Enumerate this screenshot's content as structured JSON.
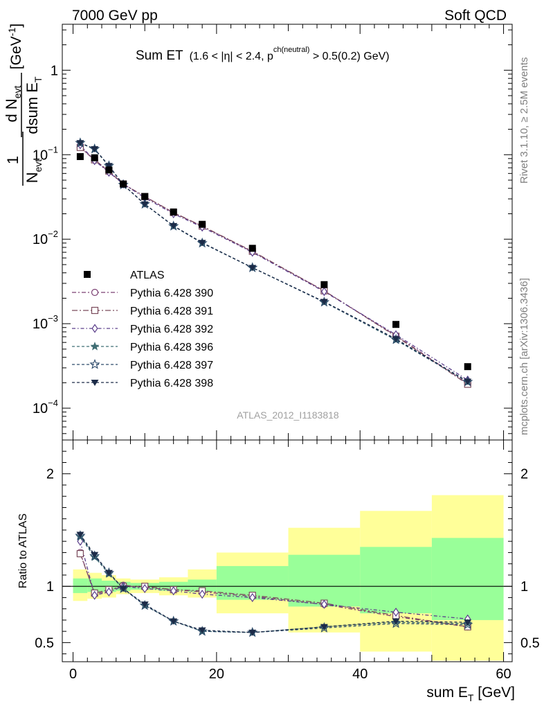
{
  "header": {
    "left": "7000 GeV pp",
    "right": "Soft QCD"
  },
  "side_labels": {
    "rivet": "Rivet 3.1.10, ≥ 2.5M events",
    "mcplots": "mcplots.cern.ch [arXiv:1306.3436]"
  },
  "plot_title": {
    "main": "Sum ET",
    "cond_a": "(1.6 < ",
    "eta": "|η|",
    "cond_b": " < 2.4, p",
    "sup": "ch(neutral)",
    "cond_c": " > 0.5(0.2) GeV)"
  },
  "ylabel": {
    "one": "1",
    "n": "N",
    "n_sub": "evt",
    "d": "d N",
    "d_sub": "evt",
    "dsum": "dsum E",
    "dsum_sub": "T",
    "unit": "[GeV",
    "unit_sup": "-1",
    "unit_end": "]"
  },
  "ratio_ylabel": "Ratio to ATLAS",
  "xlabel": {
    "main": "sum E",
    "sub": "T",
    "unit": " [GeV]"
  },
  "watermark": "ATLAS_2012_I1183818",
  "ytick_labels": [
    {
      "base": "1",
      "exp": ""
    },
    {
      "base": "10",
      "exp": "−1"
    },
    {
      "base": "10",
      "exp": "−2"
    },
    {
      "base": "10",
      "exp": "−3"
    },
    {
      "base": "10",
      "exp": "−4"
    }
  ],
  "colors": {
    "atlas": "#000000",
    "s390": "#7b3f72",
    "s391": "#7a4a5b",
    "s392": "#5a3d8a",
    "s396": "#3f6d73",
    "s397": "#2c4a6a",
    "s398": "#1c2b48",
    "band_outer": "#ffff99",
    "band_inner": "#99ff99"
  },
  "chart_data": {
    "type": "line",
    "xlim": [
      -1.5,
      61.2
    ],
    "ylim": [
      4.2e-05,
      3.5
    ],
    "yscale": "log",
    "ratio_ylim": [
      0.33,
      2.3
    ],
    "x_ticks": [
      0,
      20,
      40,
      60
    ],
    "ratio_y_ticks": [
      0.5,
      1,
      2
    ],
    "legend_position": "middle-left",
    "grid": false,
    "bin_edges": [
      0,
      2,
      4,
      6,
      8,
      12,
      16,
      20,
      30,
      40,
      50,
      60
    ],
    "bin_centers": [
      1,
      3,
      5,
      7,
      10,
      14,
      18,
      25,
      35,
      45,
      55
    ],
    "atlas": {
      "name": "ATLAS",
      "values": [
        0.095,
        0.092,
        0.066,
        0.045,
        0.032,
        0.021,
        0.015,
        0.0078,
        0.0029,
        0.00098,
        0.00031
      ]
    },
    "series": [
      {
        "key": "s390",
        "name": "Pythia 6.428 390",
        "marker": "circle-open",
        "dash": "6,3,2,3",
        "values": [
          0.123,
          0.086,
          0.063,
          0.045,
          0.032,
          0.0205,
          0.0142,
          0.0071,
          0.00245,
          0.00072,
          0.000195
        ]
      },
      {
        "key": "s391",
        "name": "Pythia 6.428 391",
        "marker": "square-open",
        "dash": "8,3,2,3",
        "values": [
          0.122,
          0.087,
          0.064,
          0.045,
          0.032,
          0.0207,
          0.0143,
          0.0072,
          0.00245,
          0.00071,
          0.000192
        ]
      },
      {
        "key": "s392",
        "name": "Pythia 6.428 392",
        "marker": "diamond-open",
        "dash": "5,3,1.5,3",
        "values": [
          0.131,
          0.085,
          0.062,
          0.045,
          0.031,
          0.02,
          0.0139,
          0.007,
          0.0024,
          0.00074,
          0.000215
        ]
      },
      {
        "key": "s396",
        "name": "Pythia 6.428 396",
        "marker": "star-filled",
        "dash": "4,3",
        "values": [
          0.137,
          0.116,
          0.073,
          0.044,
          0.026,
          0.0143,
          0.009,
          0.0046,
          0.0018,
          0.00064,
          0.000205
        ]
      },
      {
        "key": "s397",
        "name": "Pythia 6.428 397",
        "marker": "star-open",
        "dash": "4,3",
        "values": [
          0.138,
          0.117,
          0.074,
          0.044,
          0.026,
          0.0143,
          0.009,
          0.0046,
          0.0018,
          0.00065,
          0.000205
        ]
      },
      {
        "key": "s398",
        "name": "Pythia 6.428 398",
        "marker": "triangle-down-filled",
        "dash": "4,3",
        "values": [
          0.138,
          0.117,
          0.074,
          0.044,
          0.026,
          0.0144,
          0.0091,
          0.0046,
          0.00182,
          0.00066,
          0.000207
        ]
      }
    ],
    "ratio": {
      "band_inner": [
        [
          0.94,
          1.07
        ],
        [
          0.95,
          1.07
        ],
        [
          0.95,
          1.05
        ],
        [
          0.96,
          1.04
        ],
        [
          0.97,
          1.03
        ],
        [
          0.96,
          1.04
        ],
        [
          0.95,
          1.06
        ],
        [
          0.88,
          1.18
        ],
        [
          0.82,
          1.28
        ],
        [
          0.76,
          1.35
        ],
        [
          0.7,
          1.43
        ]
      ],
      "band_outer": [
        [
          0.87,
          1.15
        ],
        [
          0.89,
          1.12
        ],
        [
          0.9,
          1.1
        ],
        [
          0.93,
          1.07
        ],
        [
          0.94,
          1.06
        ],
        [
          0.92,
          1.08
        ],
        [
          0.9,
          1.15
        ],
        [
          0.76,
          1.3
        ],
        [
          0.59,
          1.52
        ],
        [
          0.42,
          1.67
        ],
        [
          0.34,
          1.81
        ]
      ],
      "series": [
        [
          1.3,
          0.93,
          0.96,
          1.01,
          0.99,
          0.97,
          0.95,
          0.91,
          0.84,
          0.73,
          0.64
        ],
        [
          1.29,
          0.94,
          0.97,
          1.0,
          1.0,
          0.97,
          0.96,
          0.92,
          0.85,
          0.74,
          0.64
        ],
        [
          1.4,
          0.92,
          0.95,
          1.0,
          0.98,
          0.96,
          0.93,
          0.9,
          0.84,
          0.77,
          0.71
        ],
        [
          1.44,
          1.26,
          1.11,
          0.98,
          0.83,
          0.69,
          0.6,
          0.59,
          0.64,
          0.68,
          0.67
        ],
        [
          1.45,
          1.27,
          1.12,
          0.98,
          0.83,
          0.69,
          0.6,
          0.59,
          0.63,
          0.67,
          0.66
        ],
        [
          1.46,
          1.28,
          1.12,
          0.98,
          0.84,
          0.69,
          0.61,
          0.59,
          0.64,
          0.69,
          0.68
        ]
      ]
    }
  }
}
